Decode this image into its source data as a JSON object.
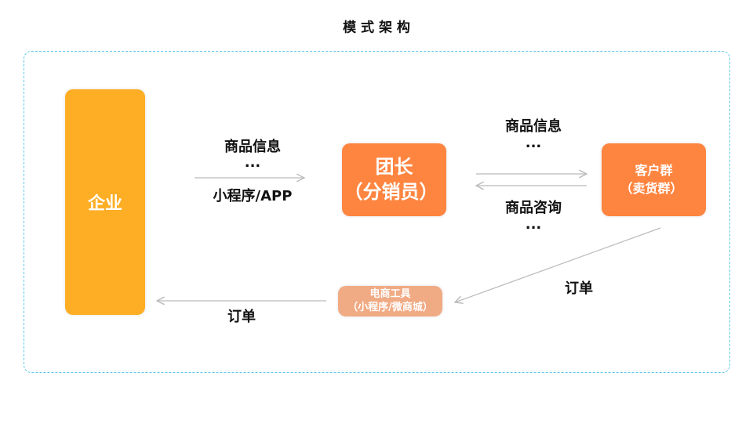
{
  "title": "模 式 架 构",
  "colors": {
    "enterprise": "#fdae24",
    "leader": "#fe8540",
    "customers": "#fe8540",
    "tools": "#f0aa84",
    "frame": "#5bc8ea",
    "arrow": "#bbbbbb"
  },
  "nodes": {
    "enterprise": "企业",
    "leader": {
      "line1": "团长",
      "line2": "（分销员）"
    },
    "customers": {
      "line1": "客户群",
      "line2": "（卖货群）"
    },
    "tools": {
      "line1": "电商工具",
      "line2": "（小程序/微商城）"
    }
  },
  "edges": {
    "enterprise_to_leader": {
      "top": "商品信息",
      "dots": "···",
      "bottom": "小程序/APP"
    },
    "leader_to_customers": {
      "top": "商品信息",
      "dots": "···"
    },
    "customers_to_leader": {
      "bottom": "商品咨询",
      "dots": "···"
    },
    "customers_to_tools": "订单",
    "tools_to_enterprise": "订单"
  }
}
